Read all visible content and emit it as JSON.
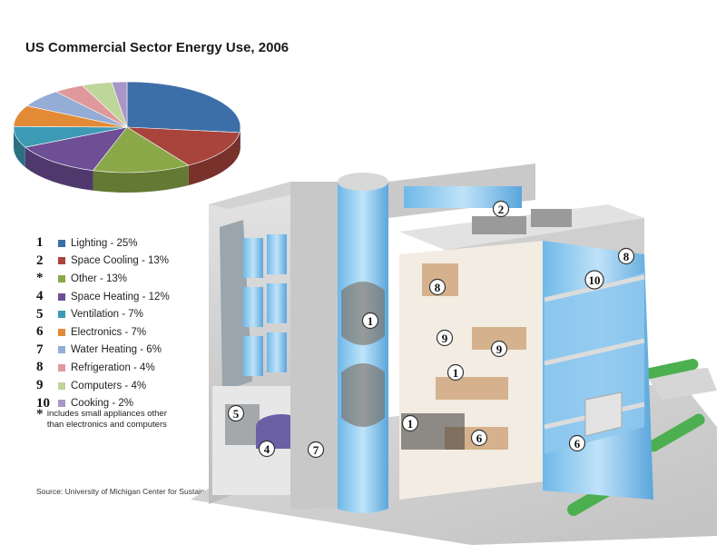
{
  "chart_data": {
    "type": "pie",
    "title": "US Commercial Sector Energy Use, 2006",
    "slices": [
      {
        "marker": "1",
        "label": "Lighting - 25%",
        "name": "Lighting",
        "value": 25,
        "color": "#3c6ea8"
      },
      {
        "marker": "2",
        "label": "Space Cooling - 13%",
        "name": "Space Cooling",
        "value": 13,
        "color": "#a8443c"
      },
      {
        "marker": "*",
        "label": "Other - 13%",
        "name": "Other",
        "value": 13,
        "color": "#8aa848"
      },
      {
        "marker": "4",
        "label": "Space Heating - 12%",
        "name": "Space Heating",
        "value": 12,
        "color": "#6e4f96"
      },
      {
        "marker": "5",
        "label": "Ventilation - 7%",
        "name": "Ventilation",
        "value": 7,
        "color": "#3d9ab5"
      },
      {
        "marker": "6",
        "label": "Electronics - 7%",
        "name": "Electronics",
        "value": 7,
        "color": "#e28a36"
      },
      {
        "marker": "7",
        "label": "Water Heating - 6%",
        "name": "Water Heating",
        "value": 6,
        "color": "#94acd6"
      },
      {
        "marker": "8",
        "label": "Refrigeration - 4%",
        "name": "Refrigeration",
        "value": 4,
        "color": "#e0999a"
      },
      {
        "marker": "9",
        "label": "Computers - 4%",
        "name": "Computers",
        "value": 4,
        "color": "#bfd69a"
      },
      {
        "marker": "10",
        "label": "Cooking - 2%",
        "name": "Cooking",
        "value": 2,
        "color": "#a996c8"
      }
    ],
    "legend_position": "left"
  },
  "footnote": {
    "marker": "*",
    "text": "includes small appliances other than electronics and computers"
  },
  "source": "Source:  University of Michigan Center for Sustainable Systems",
  "callouts": [
    "1",
    "1",
    "1",
    "2",
    "4",
    "5",
    "6",
    "6",
    "7",
    "8",
    "8",
    "9",
    "9",
    "10"
  ]
}
